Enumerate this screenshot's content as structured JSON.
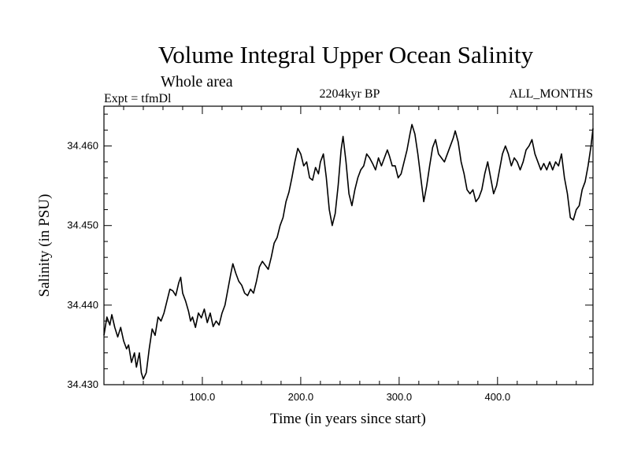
{
  "chart_data": {
    "type": "line",
    "title": "Volume Integral Upper Ocean Salinity",
    "subtitle": "Whole area",
    "left_note": "Expt = tfmDl",
    "center_note": "2204kyr BP",
    "right_note": "ALL_MONTHS",
    "xlabel": "Time (in years since start)",
    "ylabel": "Salinity (in PSU)",
    "xlim": [
      0,
      497
    ],
    "ylim": [
      34.43,
      34.465
    ],
    "x_ticks": [
      100,
      200,
      300,
      400
    ],
    "x_tick_labels": [
      "100.0",
      "200.0",
      "300.0",
      "400.0"
    ],
    "y_ticks": [
      34.43,
      34.44,
      34.45,
      34.46
    ],
    "y_tick_labels": [
      "34.430",
      "34.440",
      "34.450",
      "34.460"
    ],
    "grid": false,
    "series": [
      {
        "name": "Salinity",
        "color": "#000000",
        "points": [
          [
            0,
            34.4362
          ],
          [
            3,
            34.4385
          ],
          [
            6,
            34.4375
          ],
          [
            8,
            34.4388
          ],
          [
            11,
            34.4372
          ],
          [
            14,
            34.436
          ],
          [
            17,
            34.4372
          ],
          [
            20,
            34.4355
          ],
          [
            23,
            34.4345
          ],
          [
            25,
            34.435
          ],
          [
            28,
            34.4328
          ],
          [
            31,
            34.434
          ],
          [
            33,
            34.4322
          ],
          [
            36,
            34.434
          ],
          [
            38,
            34.4315
          ],
          [
            40,
            34.4307
          ],
          [
            43,
            34.4315
          ],
          [
            46,
            34.4345
          ],
          [
            49,
            34.437
          ],
          [
            52,
            34.4362
          ],
          [
            55,
            34.4385
          ],
          [
            58,
            34.438
          ],
          [
            61,
            34.439
          ],
          [
            64,
            34.4405
          ],
          [
            67,
            34.442
          ],
          [
            70,
            34.4418
          ],
          [
            73,
            34.4412
          ],
          [
            76,
            34.4428
          ],
          [
            78,
            34.4435
          ],
          [
            80,
            34.4415
          ],
          [
            83,
            34.4405
          ],
          [
            86,
            34.4392
          ],
          [
            88,
            34.438
          ],
          [
            90,
            34.4385
          ],
          [
            93,
            34.4372
          ],
          [
            96,
            34.439
          ],
          [
            99,
            34.4384
          ],
          [
            102,
            34.4395
          ],
          [
            105,
            34.4378
          ],
          [
            108,
            34.439
          ],
          [
            111,
            34.4373
          ],
          [
            114,
            34.438
          ],
          [
            117,
            34.4375
          ],
          [
            120,
            34.439
          ],
          [
            123,
            34.44
          ],
          [
            126,
            34.442
          ],
          [
            129,
            34.444
          ],
          [
            131,
            34.4452
          ],
          [
            134,
            34.444
          ],
          [
            137,
            34.443
          ],
          [
            140,
            34.4425
          ],
          [
            143,
            34.4415
          ],
          [
            146,
            34.4412
          ],
          [
            149,
            34.442
          ],
          [
            152,
            34.4415
          ],
          [
            155,
            34.443
          ],
          [
            158,
            34.4448
          ],
          [
            161,
            34.4455
          ],
          [
            164,
            34.445
          ],
          [
            167,
            34.4445
          ],
          [
            170,
            34.446
          ],
          [
            173,
            34.4478
          ],
          [
            176,
            34.4485
          ],
          [
            179,
            34.45
          ],
          [
            182,
            34.451
          ],
          [
            185,
            34.453
          ],
          [
            188,
            34.4542
          ],
          [
            191,
            34.456
          ],
          [
            194,
            34.458
          ],
          [
            197,
            34.4597
          ],
          [
            200,
            34.459
          ],
          [
            203,
            34.4575
          ],
          [
            206,
            34.458
          ],
          [
            209,
            34.456
          ],
          [
            212,
            34.4557
          ],
          [
            215,
            34.4573
          ],
          [
            218,
            34.4565
          ],
          [
            220,
            34.458
          ],
          [
            223,
            34.459
          ],
          [
            226,
            34.456
          ],
          [
            229,
            34.452
          ],
          [
            232,
            34.45
          ],
          [
            235,
            34.4515
          ],
          [
            238,
            34.455
          ],
          [
            241,
            34.4595
          ],
          [
            243,
            34.4612
          ],
          [
            246,
            34.458
          ],
          [
            249,
            34.454
          ],
          [
            252,
            34.4525
          ],
          [
            255,
            34.4545
          ],
          [
            258,
            34.456
          ],
          [
            261,
            34.457
          ],
          [
            264,
            34.4575
          ],
          [
            267,
            34.459
          ],
          [
            270,
            34.4585
          ],
          [
            273,
            34.4578
          ],
          [
            276,
            34.457
          ],
          [
            279,
            34.4585
          ],
          [
            282,
            34.4575
          ],
          [
            285,
            34.4585
          ],
          [
            288,
            34.4595
          ],
          [
            290,
            34.4588
          ],
          [
            293,
            34.4575
          ],
          [
            296,
            34.4575
          ],
          [
            299,
            34.456
          ],
          [
            302,
            34.4565
          ],
          [
            305,
            34.458
          ],
          [
            308,
            34.4595
          ],
          [
            311,
            34.4615
          ],
          [
            313,
            34.4627
          ],
          [
            316,
            34.4615
          ],
          [
            319,
            34.459
          ],
          [
            322,
            34.456
          ],
          [
            325,
            34.453
          ],
          [
            328,
            34.455
          ],
          [
            331,
            34.4575
          ],
          [
            334,
            34.4598
          ],
          [
            337,
            34.4608
          ],
          [
            340,
            34.459
          ],
          [
            343,
            34.4585
          ],
          [
            346,
            34.458
          ],
          [
            349,
            34.459
          ],
          [
            352,
            34.46
          ],
          [
            355,
            34.461
          ],
          [
            357,
            34.4619
          ],
          [
            360,
            34.4605
          ],
          [
            363,
            34.458
          ],
          [
            366,
            34.4565
          ],
          [
            369,
            34.4545
          ],
          [
            372,
            34.454
          ],
          [
            375,
            34.4545
          ],
          [
            378,
            34.453
          ],
          [
            381,
            34.4535
          ],
          [
            384,
            34.4545
          ],
          [
            387,
            34.4565
          ],
          [
            390,
            34.458
          ],
          [
            393,
            34.456
          ],
          [
            396,
            34.454
          ],
          [
            399,
            34.455
          ],
          [
            402,
            34.457
          ],
          [
            405,
            34.459
          ],
          [
            408,
            34.46
          ],
          [
            411,
            34.459
          ],
          [
            414,
            34.4575
          ],
          [
            417,
            34.4585
          ],
          [
            420,
            34.458
          ],
          [
            423,
            34.457
          ],
          [
            426,
            34.458
          ],
          [
            429,
            34.4595
          ],
          [
            432,
            34.46
          ],
          [
            435,
            34.4608
          ],
          [
            438,
            34.459
          ],
          [
            441,
            34.458
          ],
          [
            444,
            34.457
          ],
          [
            447,
            34.4578
          ],
          [
            450,
            34.457
          ],
          [
            453,
            34.458
          ],
          [
            456,
            34.457
          ],
          [
            459,
            34.458
          ],
          [
            462,
            34.4575
          ],
          [
            465,
            34.459
          ],
          [
            468,
            34.456
          ],
          [
            471,
            34.454
          ],
          [
            474,
            34.451
          ],
          [
            477,
            34.4507
          ],
          [
            480,
            34.452
          ],
          [
            483,
            34.4525
          ],
          [
            486,
            34.4545
          ],
          [
            489,
            34.4555
          ],
          [
            492,
            34.4575
          ],
          [
            495,
            34.46
          ],
          [
            497,
            34.4622
          ]
        ]
      }
    ]
  }
}
